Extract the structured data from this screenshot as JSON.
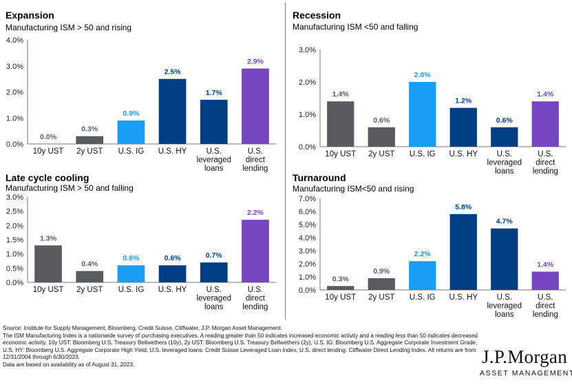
{
  "colors": {
    "gray": "#595c5e",
    "light_blue": "#1a9ef5",
    "navy": "#003e84",
    "purple": "#7545c2",
    "axis": "#777777"
  },
  "chart_data": [
    {
      "type": "bar",
      "title": "Expansion",
      "subtitle": "Manufacturing ISM > 50 and rising",
      "categories": [
        "10y UST",
        "2y UST",
        "U.S. IG",
        "U.S. HY",
        "U.S. leveraged loans",
        "U.S. direct lending"
      ],
      "values": [
        0.0,
        0.3,
        0.9,
        2.5,
        1.7,
        2.9
      ],
      "data_labels": [
        "0.0%",
        "0.3%",
        "0.9%",
        "2.5%",
        "1.7%",
        "2.9%"
      ],
      "ylim": [
        0,
        4.0
      ],
      "yticks": [
        "0.0%",
        "1.0%",
        "2.0%",
        "3.0%",
        "4.0%"
      ],
      "legend": "none",
      "grid": false
    },
    {
      "type": "bar",
      "title": "Recession",
      "subtitle": "Manufacturing ISM <50 and falling",
      "categories": [
        "10y UST",
        "2y UST",
        "U.S. IG",
        "U.S. HY",
        "U.S. leveraged loans",
        "U.S. direct lending"
      ],
      "values": [
        1.4,
        0.6,
        2.0,
        1.2,
        0.6,
        1.4
      ],
      "data_labels": [
        "1.4%",
        "0.6%",
        "2.0%",
        "1.2%",
        "0.6%",
        "1.4%"
      ],
      "ylim": [
        0,
        3.0
      ],
      "yticks": [
        "0.0%",
        "1.0%",
        "2.0%",
        "3.0%"
      ],
      "legend": "none",
      "grid": false
    },
    {
      "type": "bar",
      "title": "Late cycle cooling",
      "subtitle": "Manufacturing ISM > 50 and falling",
      "categories": [
        "10y UST",
        "2y UST",
        "U.S. IG",
        "U.S. HY",
        "U.S. leveraged loans",
        "U.S. direct lending"
      ],
      "values": [
        1.3,
        0.4,
        0.6,
        0.6,
        0.7,
        2.2
      ],
      "data_labels": [
        "1.3%",
        "0.4%",
        "0.6%",
        "0.6%",
        "0.7%",
        "2.2%"
      ],
      "ylim": [
        0,
        3.0
      ],
      "yticks": [
        "0.0%",
        "0.5%",
        "1.0%",
        "1.5%",
        "2.0%",
        "2.5%",
        "3.0%"
      ],
      "legend": "none",
      "grid": false
    },
    {
      "type": "bar",
      "title": "Turnaround",
      "subtitle": "Manufacturing ISM<50 and rising",
      "categories": [
        "10y UST",
        "2y UST",
        "U.S. IG",
        "U.S. HY",
        "U.S. leveraged loans",
        "U.S. direct lending"
      ],
      "values": [
        0.3,
        0.9,
        2.2,
        5.8,
        4.7,
        1.4
      ],
      "data_labels": [
        "0.3%",
        "0.9%",
        "2.2%",
        "5.8%",
        "4.7%",
        "1.4%"
      ],
      "ylim": [
        0,
        7.0
      ],
      "yticks": [
        "0.0%",
        "1.0%",
        "2.0%",
        "3.0%",
        "4.0%",
        "5.0%",
        "6.0%",
        "7.0%"
      ],
      "legend": "none",
      "grid": false
    }
  ],
  "footer": {
    "source": "Source: Institute for Supply Management, Bloomberg, Credit Suisse, Cliffwater, J.P. Morgan Asset Management.",
    "note": "The ISM Manufacturing Index is a nationwide survey of purchasing executives. A reading greater than 50 indicates increased economic activity and a reading less than 50 indicates decreased economic activity. 10y UST: Bloomberg U.S. Treasury Bellwethers (10y), 2y UST: Bloomberg U.S. Treasury Bellwethers (2y), U.S. IG: Bloomberg U.S. Aggregate Corporate Investment Grade, U.S. HY: Bloomberg U.S. Aggregate Corporate High Yield, U.S. leveraged loans: Credit Suisse Leveraged Loan Index, U.S. direct lending: Cliffwater Direct Lending Index. All returns are from 12/31/2004 through 6/30/2023.",
    "availability": "Data are based on availability as of August 31, 2023."
  },
  "logo": {
    "main": "J.P.Morgan",
    "sub": "ASSET MANAGEMENT"
  }
}
